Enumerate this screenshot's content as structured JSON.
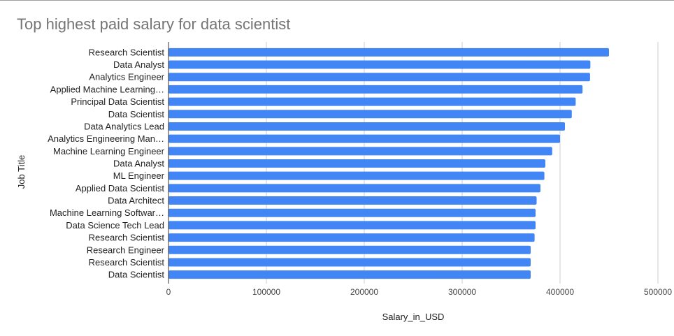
{
  "chart_data": {
    "type": "bar",
    "orientation": "horizontal",
    "title": "Top highest paid salary for data scientist",
    "xlabel": "Salary_in_USD",
    "ylabel": "Job Title",
    "categories": [
      "Research Scientist",
      "Data Analyst",
      "Analytics Engineer",
      "Applied Machine Learning…",
      "Principal Data Scientist",
      "Data Scientist",
      "Data Analytics Lead",
      "Analytics Engineering Man…",
      "Machine Learning Engineer",
      "Data Analyst",
      "ML Engineer",
      "Applied Data Scientist",
      "Data Architect",
      "Machine Learning Softwar…",
      "Data Science Tech Lead",
      "Research Scientist",
      "Research Engineer",
      "Research Scientist",
      "Data Scientist"
    ],
    "values": [
      450000,
      430967,
      430640,
      423000,
      416000,
      412000,
      405000,
      400000,
      392000,
      385000,
      384000,
      380000,
      376080,
      375000,
      375000,
      374000,
      370000,
      370000,
      370000
    ],
    "xlim": [
      0,
      500000
    ],
    "xticks": [
      "0",
      "100000",
      "200000",
      "300000",
      "400000",
      "500000"
    ],
    "grid": true,
    "legend": "none",
    "bar_color": "#4285f4"
  }
}
